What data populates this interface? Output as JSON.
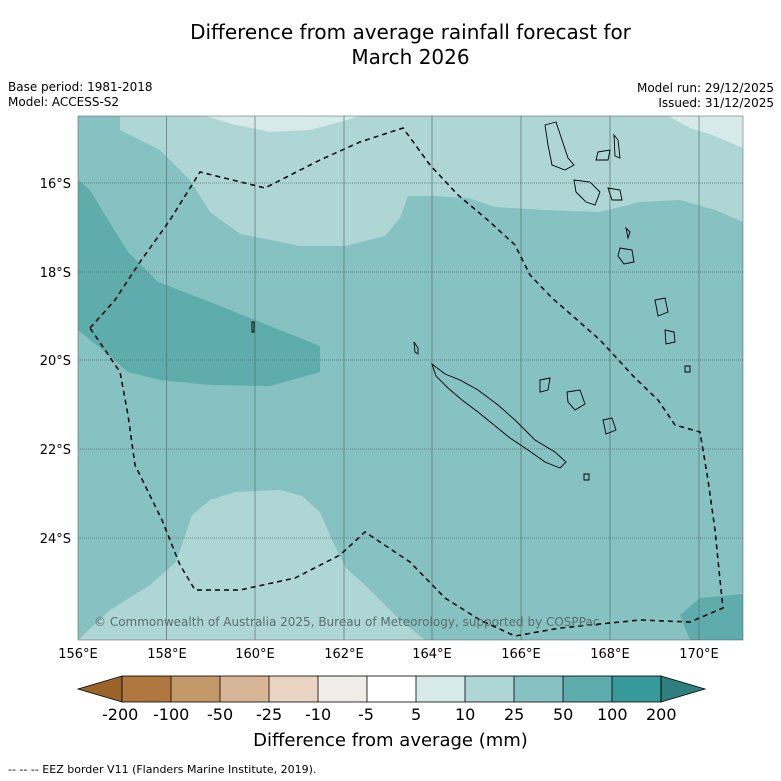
{
  "title": {
    "line1": "Difference from average rainfall forecast for",
    "line2": "March 2026"
  },
  "meta_left": {
    "base_period": "Base period: 1981-2018",
    "model": "Model: ACCESS-S2"
  },
  "meta_right": {
    "model_run": "Model run: 29/12/2025",
    "issued": "Issued: 31/12/2025"
  },
  "map": {
    "lon_labels": [
      "156°E",
      "158°E",
      "160°E",
      "162°E",
      "164°E",
      "166°E",
      "168°E",
      "170°E"
    ],
    "lat_labels": [
      "16°S",
      "18°S",
      "20°S",
      "22°S",
      "24°S"
    ],
    "copyright": "© Commonwealth of Australia 2025, Bureau of Meteorology, supported by COSPPac",
    "palette": {
      "band_5_10": "#d6ebe9",
      "band_10_25": "#aed6d5",
      "band_25_50": "#85c2c1",
      "band_50_100": "#5eacab",
      "band_100_200": "#36999a",
      "above_200": "#2e7f7e"
    }
  },
  "colorbar": {
    "title": "Difference from average (mm)",
    "labels": [
      "-200",
      "-100",
      "-50",
      "-25",
      "-10",
      "-5",
      "5",
      "10",
      "25",
      "50",
      "100",
      "200"
    ],
    "colors": [
      "#9a6428",
      "#b07740",
      "#c49968",
      "#d6b696",
      "#e8d4c0",
      "#f0ece8",
      "#ffffff",
      "#d6ebe9",
      "#aed6d5",
      "#85c2c1",
      "#5eacab",
      "#36999a",
      "#2e7f7e"
    ]
  },
  "footer": "--  --  -- EEZ border V11 (Flanders Marine Institute, 2019)."
}
